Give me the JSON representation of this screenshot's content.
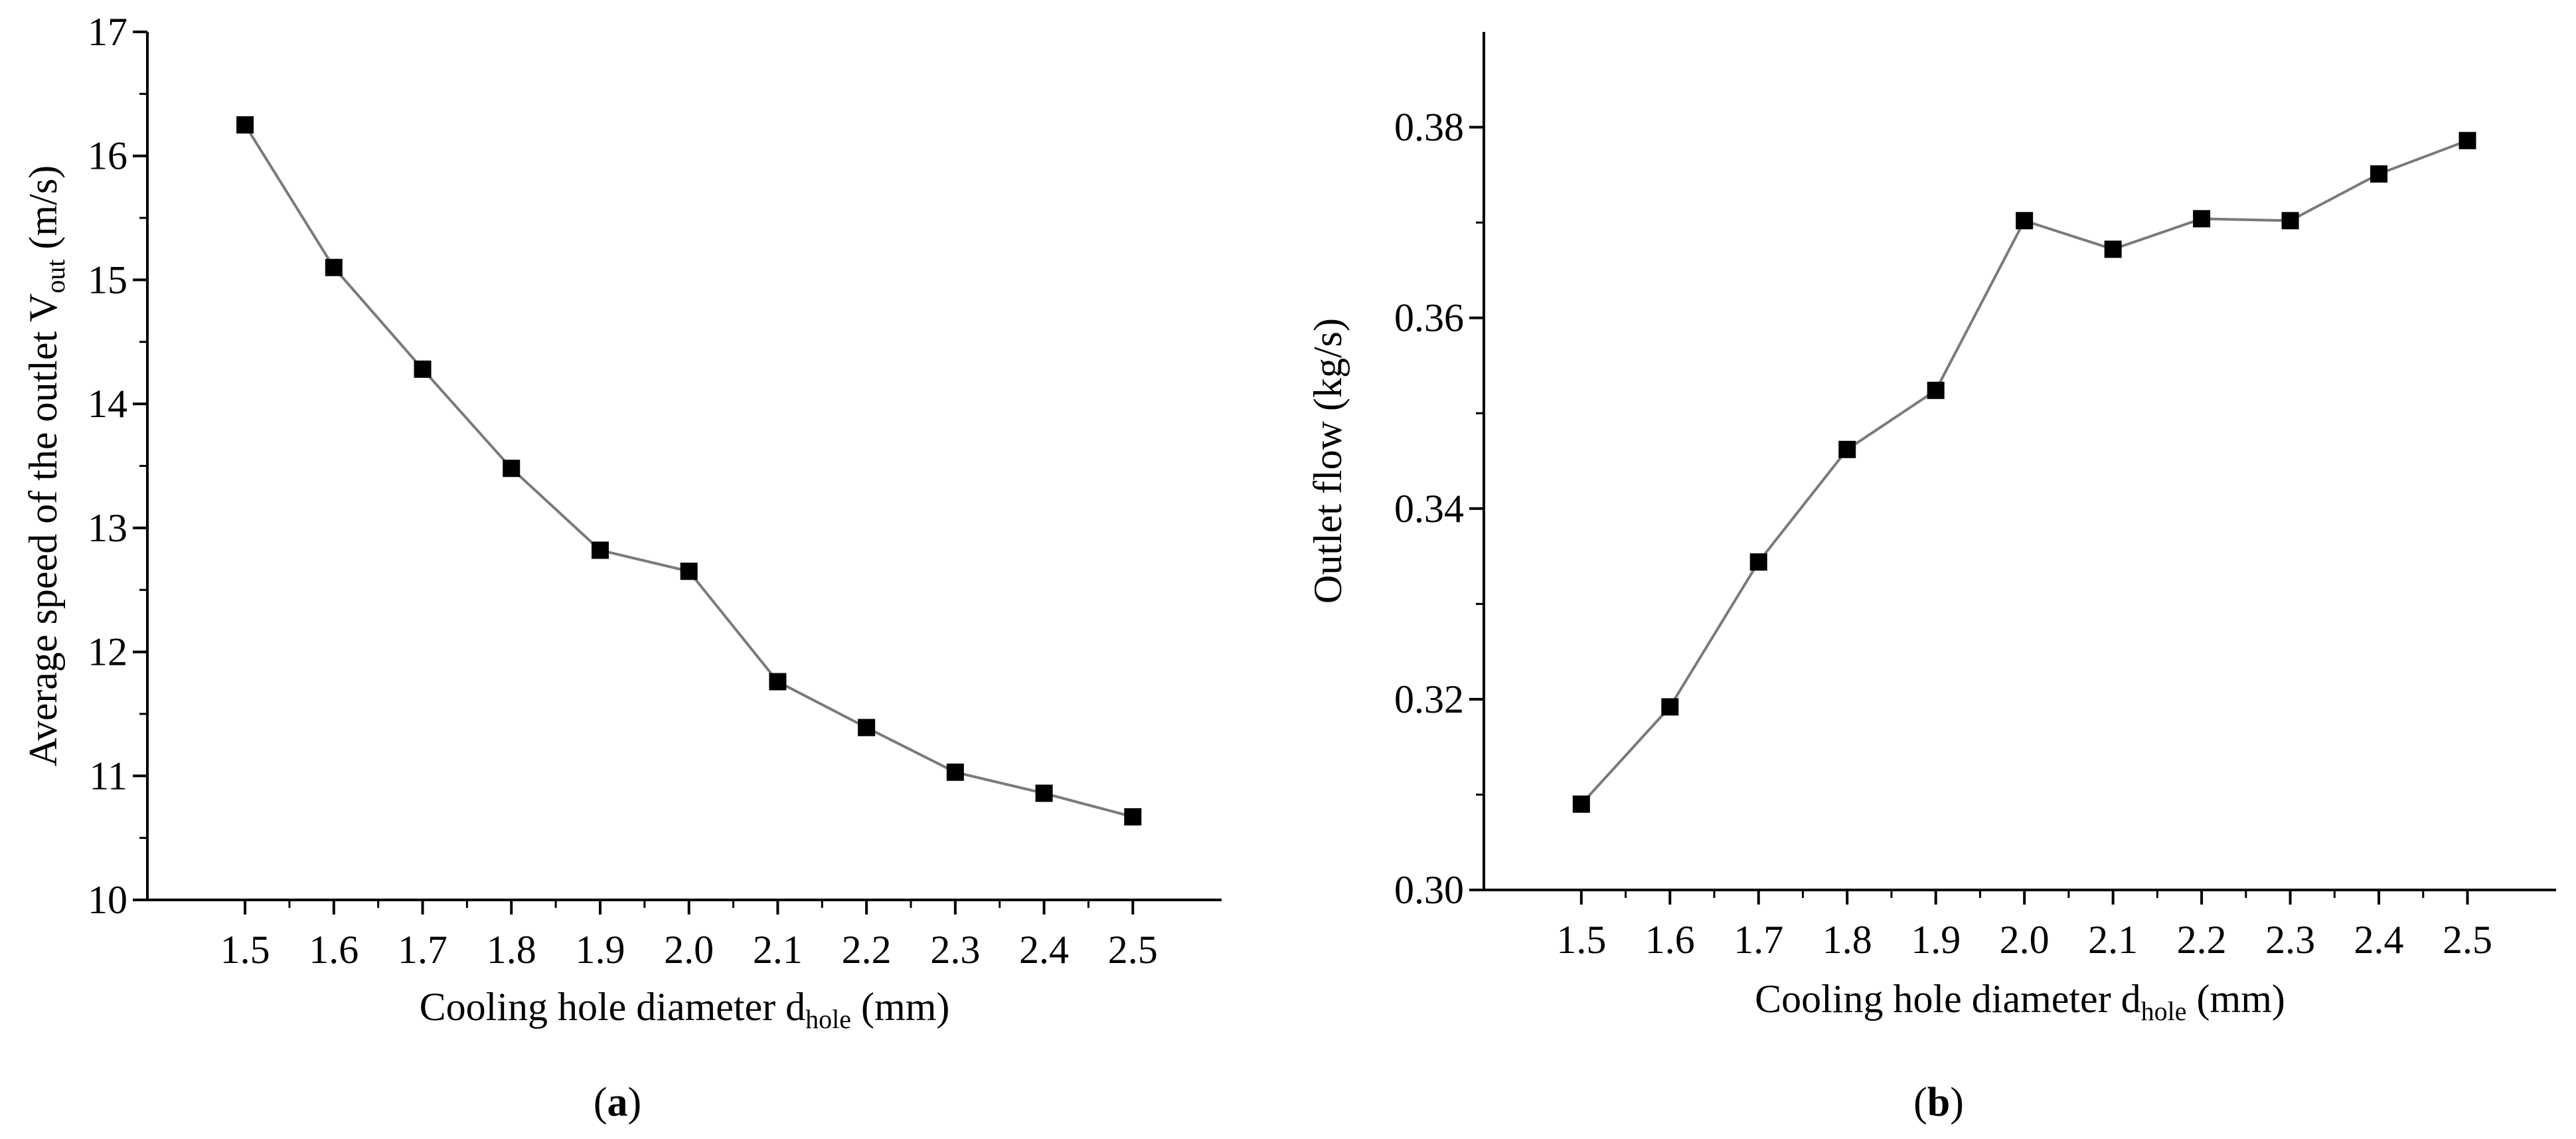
{
  "chart_data": [
    {
      "id": "a",
      "type": "line",
      "panel_label": "a",
      "xlabel": {
        "main": "Cooling hole diameter d",
        "sub": "hole",
        "unit": " (mm)"
      },
      "ylabel": {
        "main": "Average speed of the outlet V",
        "sub": "out",
        "unit": " (m/s)"
      },
      "x": [
        1.5,
        1.6,
        1.7,
        1.8,
        1.9,
        2.0,
        2.1,
        2.2,
        2.3,
        2.4,
        2.5
      ],
      "x_tick_labels": [
        "1.5",
        "1.6",
        "1.7",
        "1.8",
        "1.9",
        "2.0",
        "2.1",
        "2.2",
        "2.3",
        "2.4",
        "2.5"
      ],
      "y": [
        16.25,
        15.1,
        14.28,
        13.48,
        12.82,
        12.65,
        11.76,
        11.39,
        11.03,
        10.86,
        10.67
      ],
      "y_ticks": [
        10,
        11,
        12,
        13,
        14,
        15,
        16,
        17
      ],
      "y_tick_labels": [
        "10",
        "11",
        "12",
        "13",
        "14",
        "15",
        "16",
        "17"
      ],
      "xlim": [
        1.39,
        2.6
      ],
      "ylim": [
        10,
        17
      ],
      "marker": "square",
      "line_color": "#7a7a7a",
      "marker_color": "#000000"
    },
    {
      "id": "b",
      "type": "line",
      "panel_label": "b",
      "xlabel": {
        "main": "Cooling hole diameter d",
        "sub": "hole",
        "unit": " (mm)"
      },
      "ylabel": {
        "main": "Outlet flow (kg/s)",
        "sub": "",
        "unit": ""
      },
      "x": [
        1.5,
        1.6,
        1.7,
        1.8,
        1.9,
        2.0,
        2.1,
        2.2,
        2.3,
        2.4,
        2.5
      ],
      "x_tick_labels": [
        "1.5",
        "1.6",
        "1.7",
        "1.8",
        "1.9",
        "2.0",
        "2.1",
        "2.2",
        "2.3",
        "2.4",
        "2.5"
      ],
      "y": [
        0.309,
        0.3192,
        0.3344,
        0.3462,
        0.3524,
        0.3702,
        0.3672,
        0.3704,
        0.3702,
        0.3751,
        0.3786
      ],
      "y_ticks": [
        0.3,
        0.32,
        0.34,
        0.36,
        0.38
      ],
      "y_tick_labels": [
        "0.30",
        "0.32",
        "0.34",
        "0.36",
        "0.38"
      ],
      "xlim": [
        1.39,
        2.6
      ],
      "ylim": [
        0.3,
        0.39
      ],
      "marker": "square",
      "line_color": "#7a7a7a",
      "marker_color": "#000000"
    }
  ]
}
